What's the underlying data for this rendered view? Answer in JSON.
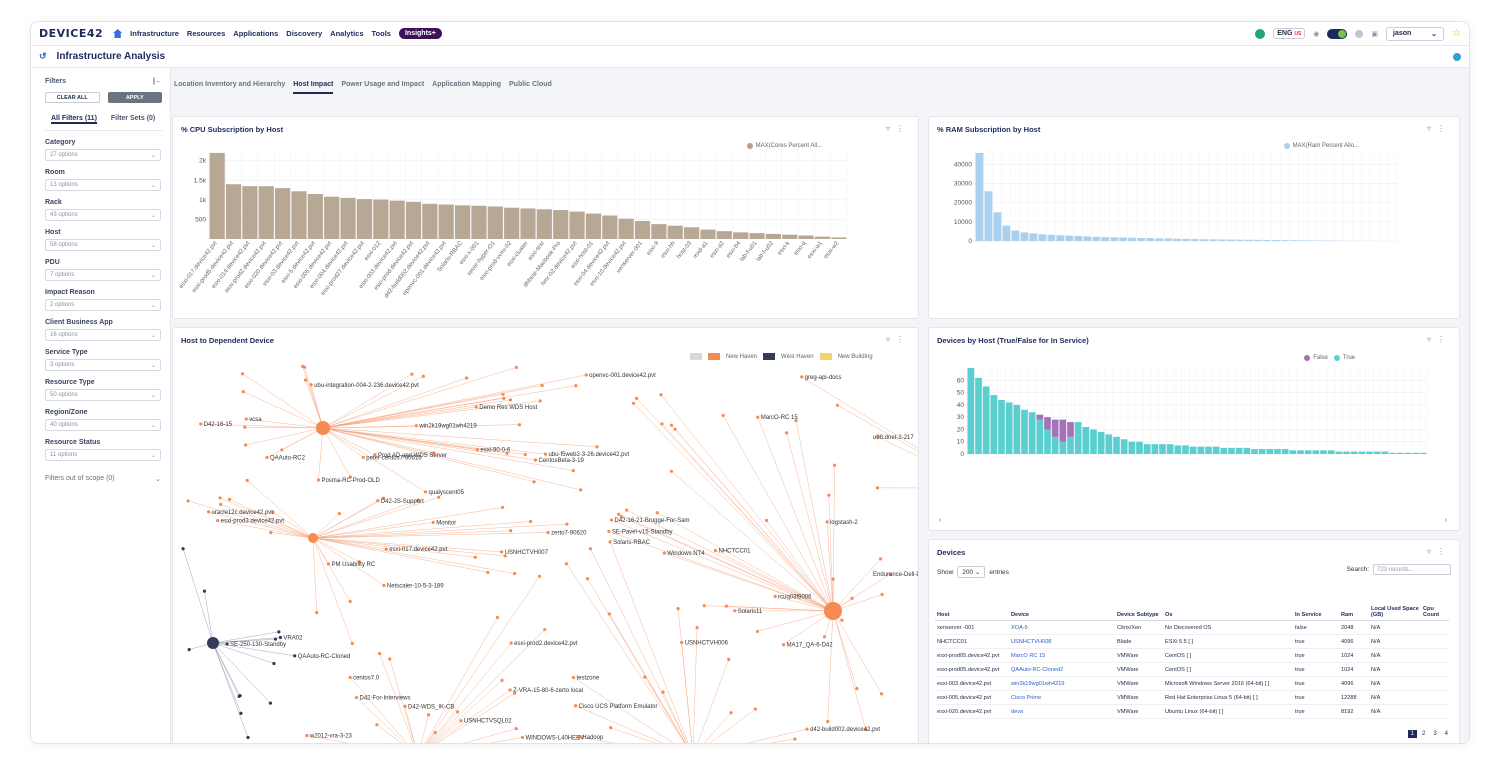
{
  "header": {
    "logo": "DEVICE42",
    "nav": [
      "Infrastructure",
      "Resources",
      "Applications",
      "Discovery",
      "Analytics",
      "Tools"
    ],
    "insights": "Insights+",
    "lang": "ENG",
    "region": "US",
    "user": "jason"
  },
  "page": {
    "title": "Infrastructure Analysis"
  },
  "sidebar": {
    "title": "Filters",
    "clear_label": "CLEAR ALL",
    "apply_label": "APPLY",
    "tab_all": "All Filters (11)",
    "tab_sets": "Filter Sets (0)",
    "filters": [
      {
        "label": "Category",
        "value": "27 options"
      },
      {
        "label": "Room",
        "value": "13 options"
      },
      {
        "label": "Rack",
        "value": "43 options"
      },
      {
        "label": "Host",
        "value": "58 options"
      },
      {
        "label": "PDU",
        "value": "7 options"
      },
      {
        "label": "Impact Reason",
        "value": "2 options"
      },
      {
        "label": "Client Business App",
        "value": "16 options"
      },
      {
        "label": "Service Type",
        "value": "3 options"
      },
      {
        "label": "Resource Type",
        "value": "50 options"
      },
      {
        "label": "Region/Zone",
        "value": "40 options"
      },
      {
        "label": "Resource Status",
        "value": "11 options"
      }
    ],
    "scope_label": "Filters out of scope (0)"
  },
  "tabs": [
    {
      "label": "Location Inventory and Hierarchy",
      "active": false
    },
    {
      "label": "Host Impact",
      "active": true
    },
    {
      "label": "Power Usage and Impact",
      "active": false
    },
    {
      "label": "Application Mapping",
      "active": false
    },
    {
      "label": "Public Cloud",
      "active": false
    }
  ],
  "cpu_panel": {
    "title": "% CPU Subscription by Host",
    "legend": "MAX(Cores Percent All..."
  },
  "ram_panel": {
    "title": "% RAM Subscription by Host",
    "legend": "MAX(Ram Percent Allo..."
  },
  "graph_panel": {
    "title": "Host to Dependent Device",
    "legend": [
      "New Haven",
      "West Haven",
      "New Building"
    ],
    "labels": [
      "QAAuto-RC2",
      "D42-16-21-Brugge-For-Sam",
      "ubu-f5web2-3-26.device42.pvt",
      "ubu-integration-004-2-236.device42.pvt",
      "u08.dnet-2-217",
      "w2012-vra-3-23",
      "QAAuto-RC-Cloned",
      "D42-For-Interviews",
      "Solaris11",
      "esxi-prod3.device42.pvt",
      "USNHCTVH007",
      "Prod AD and WDS Server",
      "d42-build002.device42.pvt",
      "openvc-001.device42.pvt",
      "USNHCTVH006",
      "SE-Pavel-v15-Standby",
      "Solaris-RBAC",
      "D42-16-15",
      "centos7.0",
      "testzone",
      "esxi-017.device42.pvt",
      "MarcO-RC 15",
      "Demo Res WDS Host",
      "esxi-prod2.device42.pvt",
      "D42-JS-Support",
      "Posma-RC-Prod-OLD",
      "Cisco UCS Platform Emulator",
      "Windows NT4",
      "logstash-2",
      "Hadoop",
      "Endurance-Dell-Demo",
      "zerto7-90620",
      "WINDOWS-L40HEEV",
      "PM Usability RC",
      "oracle12c.device42.pvt",
      "D42-WDS_IK-CB",
      "Monitor",
      "CentosBeta-3-19",
      "SE-250-130-Standby",
      "esxi-90-0-6",
      "greg-api-docs",
      "NHCTCC01",
      "USNHCTVSQL02",
      "VRA02",
      "win2k19wg01wh4219",
      "Netscaler-10-5-3-189",
      "qualyscent05",
      "MA17_QA-6-D42",
      "vcsa",
      "Z-VRA-15-80-6-zerto local",
      "peter-centos7-90616",
      "rcuq03f9006"
    ]
  },
  "devhost_panel": {
    "title": "Devices by Host (True/False for In Service)",
    "legend": [
      "False",
      "True"
    ]
  },
  "devices_panel": {
    "title": "Devices",
    "show_label": "Show",
    "show_value": "200",
    "entries_label": "entries",
    "search_label": "Search:",
    "search_placeholder": "723 records...",
    "columns": [
      "Host",
      "Device",
      "Device Subtype",
      "Os",
      "In Service",
      "Ram",
      "Local Used Space (GB)",
      "Cpu Count"
    ],
    "rows": [
      [
        "xenserver -001",
        "XOA-5",
        "Citrix/Xen",
        "No Discovered OS",
        "false",
        "2048",
        "N/A",
        ""
      ],
      [
        "NHCTCC01",
        "USNHCTVH008",
        "Blade",
        "ESXi 5.5 [ ]",
        "true",
        "4096",
        "N/A",
        ""
      ],
      [
        "esxi-prod05.device42.pvt",
        "MarcO RC 15",
        "VMWare",
        "CentOS [ ]",
        "true",
        "1024",
        "N/A",
        ""
      ],
      [
        "esxi-prod05.device42.pvt",
        "QAAuto-RC-Cloned2",
        "VMWare",
        "CentOS [ ]",
        "true",
        "1024",
        "N/A",
        ""
      ],
      [
        "esxi-003.device42.pvt",
        "win2k19wg01wh4219",
        "VMWare",
        "Microsoft Windows Server 2016 (64-bit) [ ]",
        "true",
        "4096",
        "N/A",
        ""
      ],
      [
        "esxi-005.device42.pvt",
        "Cisco Prime",
        "VMWare",
        "Red Hat Enterprise Linux 5 (64-bit) [ ]",
        "true",
        "12288",
        "N/A",
        ""
      ],
      [
        "esxi-020.device42.pvt",
        "deva",
        "VMWare",
        "Ubuntu Linux (64-bit) [ ]",
        "true",
        "8192",
        "N/A",
        ""
      ]
    ],
    "pages": [
      "1",
      "2",
      "3",
      "4"
    ]
  },
  "chart_data": [
    {
      "type": "bar",
      "title": "% CPU Subscription by Host",
      "series": [
        {
          "name": "MAX(Cores Percent All...",
          "values": [
            2200,
            1400,
            1350,
            1350,
            1300,
            1220,
            1150,
            1080,
            1050,
            1020,
            1010,
            980,
            950,
            900,
            880,
            860,
            850,
            830,
            800,
            780,
            760,
            740,
            700,
            650,
            600,
            520,
            460,
            380,
            340,
            300,
            240,
            200,
            170,
            150,
            130,
            110,
            90,
            60,
            40
          ]
        }
      ],
      "categories": [
        "esxi-017.device42.pvt",
        "esxi-prod5.device42.pvt",
        "esxi-014.device42.pvt",
        "esxi-prod2.device42.pvt",
        "esxi-020.device42.pvt",
        "esxi-03.device42.pvt",
        "esxi-5.device42.pvt",
        "esxi-005.device42.pvt",
        "esxi-004.device42.pvt",
        "esxi-prod27.device42.pvt",
        "esxi-012",
        "esxi-003.device42.pvt",
        "esxi-prod.device42.pvt",
        "d42-build002.device42.pvt",
        "openvc-001.device42.pvt",
        "Solaris-RBAC",
        "esxi-x-001",
        "sever-hyper-O1",
        "esxi-prod-vvmi-02",
        "esxi-cluster",
        "esxi-test",
        "dhbear-Macbook-Pro",
        "hmr-02.device42.pvt",
        "esxi-host-01",
        "esxi-04.device42.pvt",
        "esxi-10.device42.pvt",
        "xenserver-001",
        "esxi-9",
        "esxi-hh",
        "host-03",
        "mxd-a1",
        "esxi-a2",
        "esxi-b4",
        "lab-f-u01",
        "lab-f-u02",
        "esxi-k",
        "esxi-q",
        "esxi-w1",
        "esxi-w2"
      ],
      "ylim": [
        0,
        2300
      ],
      "yticks": [
        "500",
        "1k",
        "1.5k",
        "2k"
      ]
    },
    {
      "type": "bar",
      "title": "% RAM Subscription by Host",
      "series": [
        {
          "name": "MAX(Ram Percent Allo...",
          "values": [
            46000,
            26000,
            15000,
            8000,
            5500,
            4500,
            4000,
            3500,
            3200,
            3000,
            2800,
            2600,
            2400,
            2200,
            2000,
            1900,
            1800,
            1700,
            1600,
            1500,
            1400,
            1300,
            1200,
            1100,
            1000,
            900,
            850,
            800,
            750,
            700,
            650,
            600,
            550,
            500,
            450,
            400,
            350,
            300,
            250,
            200,
            150,
            100,
            80,
            60,
            40,
            30,
            20
          ]
        }
      ],
      "ylim": [
        0,
        46000
      ],
      "yticks": [
        "0",
        "10000",
        "20000",
        "30000",
        "40000"
      ]
    },
    {
      "type": "bar",
      "title": "Devices by Host (True/False for In Service)",
      "series": [
        {
          "name": "False",
          "values": [
            0,
            0,
            0,
            0,
            0,
            0,
            0,
            0,
            0,
            4,
            10,
            14,
            18,
            12,
            0,
            0,
            0,
            0,
            0,
            0,
            0,
            0,
            0,
            0,
            0,
            0,
            0,
            0,
            0,
            0,
            0,
            0,
            0,
            0,
            0,
            0,
            0,
            0,
            0,
            0,
            0,
            0,
            0,
            0,
            0,
            0,
            0,
            0,
            0,
            0,
            0,
            0,
            0,
            0,
            0,
            0,
            0,
            0,
            0,
            0
          ]
        },
        {
          "name": "True",
          "values": [
            70,
            62,
            55,
            48,
            44,
            42,
            40,
            36,
            34,
            28,
            20,
            14,
            10,
            14,
            26,
            22,
            20,
            18,
            16,
            14,
            12,
            10,
            10,
            8,
            8,
            8,
            8,
            7,
            7,
            6,
            6,
            6,
            6,
            5,
            5,
            5,
            5,
            4,
            4,
            4,
            4,
            4,
            3,
            3,
            3,
            3,
            3,
            3,
            2,
            2,
            2,
            2,
            2,
            2,
            2,
            1,
            1,
            1,
            1,
            1
          ]
        }
      ],
      "ylim": [
        0,
        70
      ],
      "yticks": [
        "0",
        "10",
        "20",
        "30",
        "40",
        "50",
        "60"
      ]
    }
  ],
  "colors": {
    "cpu_bar": "#b7a795",
    "ram_bar": "#a9d0ef",
    "false": "#a671b8",
    "true": "#5bcfcf",
    "graph_edge": "#f6a27a",
    "graph_node": "#f58a52",
    "graph_dark": "#343a5a"
  }
}
